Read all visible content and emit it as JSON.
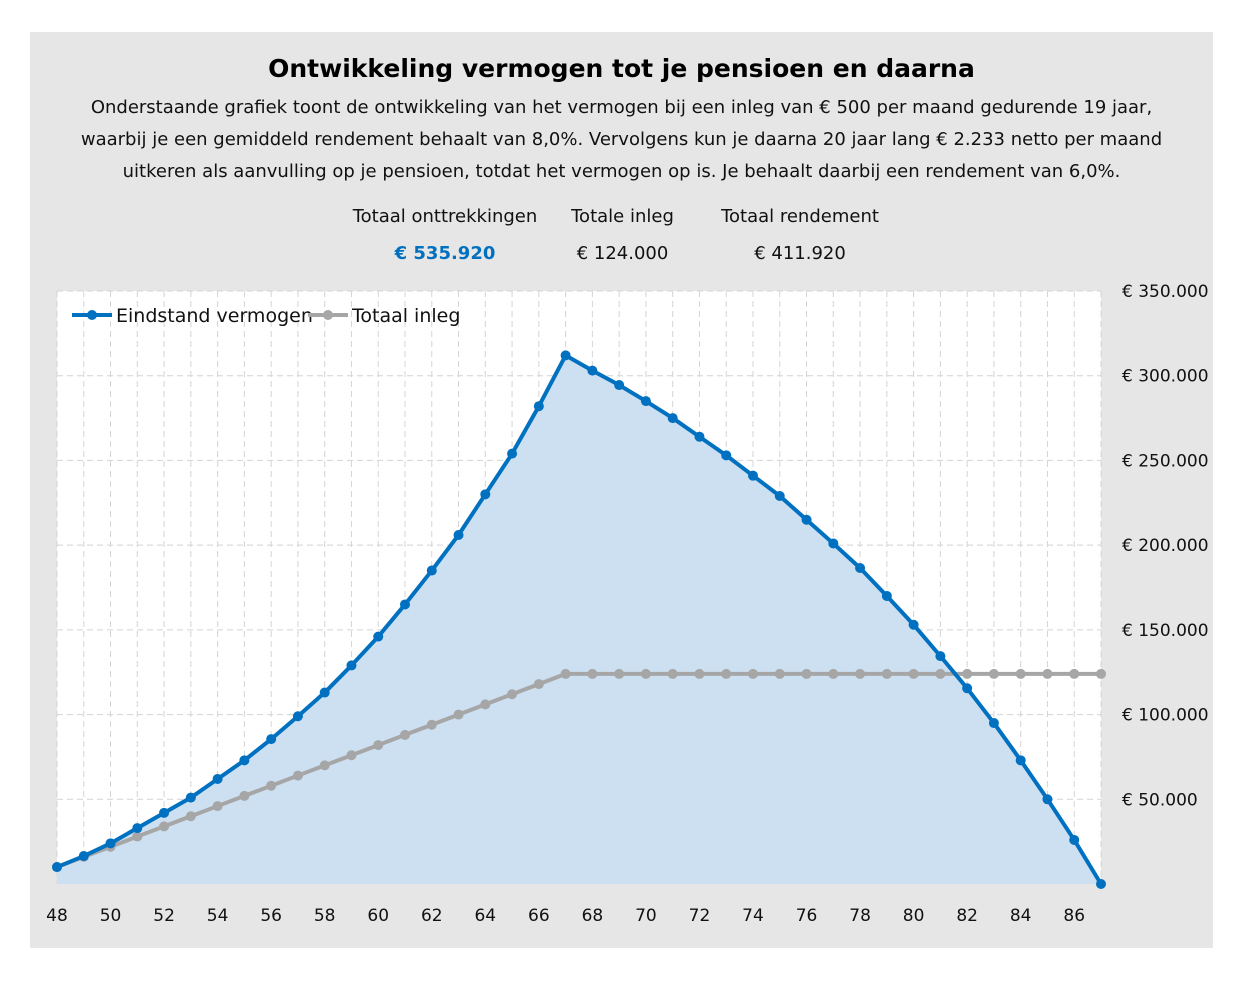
{
  "title": "Ontwikkeling vermogen tot je pensioen en daarna",
  "description": "Onderstaande grafiek toont de ontwikkeling van het vermogen bij een inleg van € 500 per maand gedurende 19 jaar, waarbij je een gemiddeld rendement behaalt van 8,0%. Vervolgens kun je daarna 20 jaar lang € 2.233 netto per maand uitkeren als aanvulling op je pensioen, totdat het vermogen op is. Je behaalt daarbij een rendement van 6,0%.",
  "stats": [
    {
      "label": "Totaal onttrekkingen",
      "value": "€ 535.920",
      "highlight": true
    },
    {
      "label": "Totale inleg",
      "value": "€ 124.000"
    },
    {
      "label": "Totaal rendement",
      "value": "€ 411.920"
    }
  ],
  "colors": {
    "blue": "#0070c0",
    "gray": "#a6a6a6",
    "fill": "#cce0f2",
    "panel": "#e6e6e6"
  },
  "chart_data": {
    "type": "line",
    "x": [
      48,
      49,
      50,
      51,
      52,
      53,
      54,
      55,
      56,
      57,
      58,
      59,
      60,
      61,
      62,
      63,
      64,
      65,
      66,
      67,
      68,
      69,
      70,
      71,
      72,
      73,
      74,
      75,
      76,
      77,
      78,
      79,
      80,
      81,
      82,
      83,
      84,
      85,
      86,
      87
    ],
    "xticks": [
      "48",
      "50",
      "52",
      "54",
      "56",
      "58",
      "60",
      "62",
      "64",
      "66",
      "68",
      "70",
      "72",
      "74",
      "76",
      "78",
      "80",
      "82",
      "84",
      "86"
    ],
    "yticks": [
      "€ 50.000",
      "€ 100.000",
      "€ 150.000",
      "€ 200.000",
      "€ 250.000",
      "€ 300.000",
      "€ 350.000"
    ],
    "ylim": [
      0,
      350000
    ],
    "grid": true,
    "legend_position": "top-left",
    "series": [
      {
        "name": "Eindstand vermogen",
        "color": "#0070c0",
        "area": true,
        "values": [
          10000,
          16500,
          24000,
          33000,
          42000,
          51000,
          62000,
          73000,
          85500,
          99000,
          113000,
          129000,
          146000,
          165000,
          185000,
          206000,
          230000,
          254000,
          282000,
          312000,
          303000,
          294500,
          285000,
          275000,
          264000,
          253000,
          241000,
          229000,
          215000,
          201000,
          186500,
          170000,
          153000,
          134500,
          115500,
          95000,
          73000,
          50000,
          26000,
          0
        ]
      },
      {
        "name": "Totaal inleg",
        "color": "#a6a6a6",
        "values": [
          10000,
          16000,
          22000,
          28000,
          34000,
          40000,
          46000,
          52000,
          58000,
          64000,
          70000,
          76000,
          82000,
          88000,
          94000,
          100000,
          106000,
          112000,
          118000,
          124000,
          124000,
          124000,
          124000,
          124000,
          124000,
          124000,
          124000,
          124000,
          124000,
          124000,
          124000,
          124000,
          124000,
          124000,
          124000,
          124000,
          124000,
          124000,
          124000,
          124000
        ]
      }
    ]
  }
}
